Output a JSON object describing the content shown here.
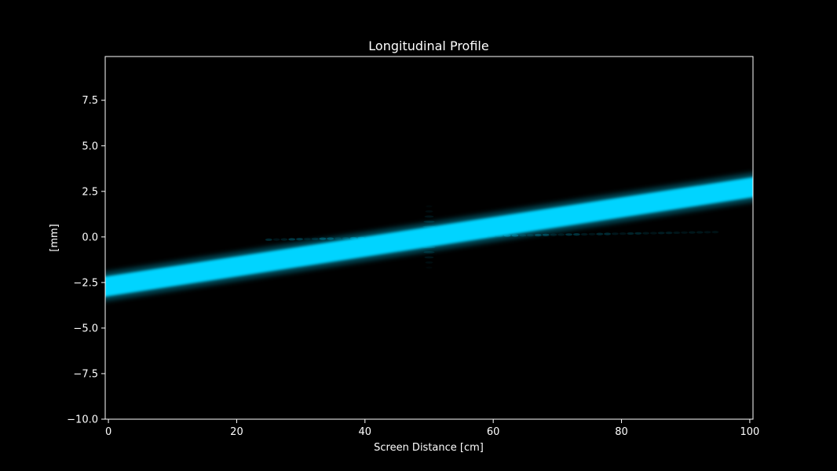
{
  "chart_data": {
    "type": "heatmap",
    "title": "Longitudinal Profile",
    "xlabel": "Screen Distance [cm]",
    "ylabel": "[mm]",
    "xlim": [
      -0.5,
      100.5
    ],
    "ylim": [
      -10.0,
      9.9
    ],
    "x_ticks": [
      0,
      20,
      40,
      60,
      80,
      100
    ],
    "x_tick_labels": [
      "0",
      "20",
      "40",
      "60",
      "80",
      "100"
    ],
    "y_ticks": [
      -10.0,
      -7.5,
      -5.0,
      -2.5,
      0.0,
      2.5,
      5.0,
      7.5
    ],
    "y_tick_labels": [
      "−10.0",
      "−7.5",
      "−5.0",
      "−2.5",
      "0.0",
      "2.5",
      "5.0",
      "7.5"
    ],
    "grid": false,
    "colors": {
      "beam": "#00d4ff",
      "background": "#000000",
      "frame": "#ffffff"
    },
    "beam": {
      "x": [
        0,
        100
      ],
      "center_y": [
        -2.7,
        2.7
      ],
      "half_width_mm": [
        0.55,
        0.55
      ]
    },
    "interference_zone": {
      "x_range": [
        25,
        95
      ],
      "center_x": 50,
      "y": 0.0
    }
  }
}
